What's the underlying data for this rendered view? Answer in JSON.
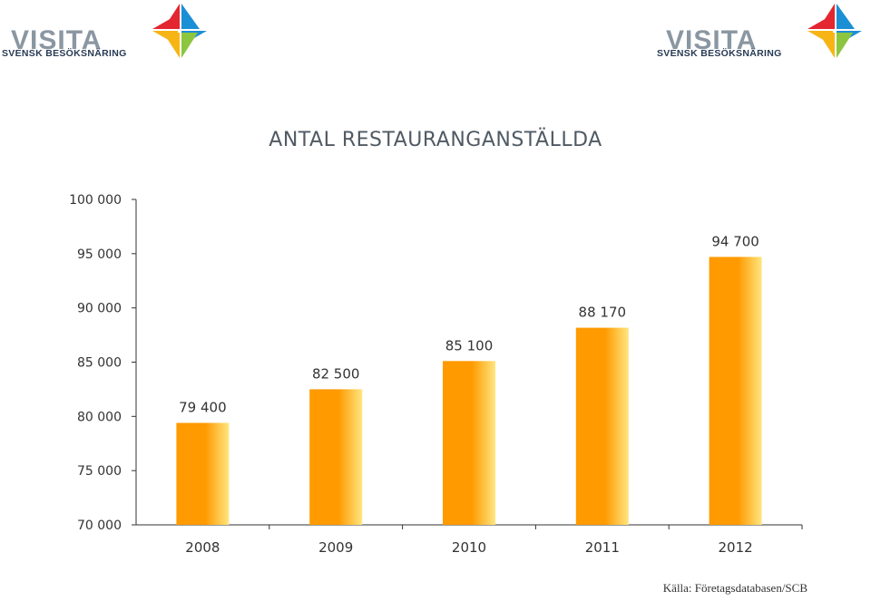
{
  "logos": [
    {
      "word": "VISITA",
      "tagline": "SVENSK BESÖKSNÄRING",
      "icon": "visita-cross-icon"
    },
    {
      "word": "VISITA",
      "tagline": "SVENSK BESÖKSNÄRING",
      "icon": "visita-cross-icon"
    }
  ],
  "colors": {
    "bar_main": "#ff9a00",
    "bar_highlight": "#ffe680",
    "axis": "#333333",
    "text": "#505a64"
  },
  "chart_data": {
    "type": "bar",
    "title": "ANTAL RESTAURANGANSTÄLLDA",
    "categories": [
      "2008",
      "2009",
      "2010",
      "2011",
      "2012"
    ],
    "values": [
      79400,
      82500,
      85100,
      88170,
      94700
    ],
    "value_labels": [
      "79 400",
      "82 500",
      "85 100",
      "88 170",
      "94 700"
    ],
    "ylim": [
      70000,
      100000
    ],
    "yticks": [
      70000,
      75000,
      80000,
      85000,
      90000,
      95000,
      100000
    ],
    "ytick_labels": [
      "70 000",
      "75 000",
      "80 000",
      "85 000",
      "90 000",
      "95 000",
      "100 000"
    ],
    "xlabel": "",
    "ylabel": "",
    "grid": false,
    "legend": "none"
  },
  "source": "Källa: Företagsdatabasen/SCB"
}
